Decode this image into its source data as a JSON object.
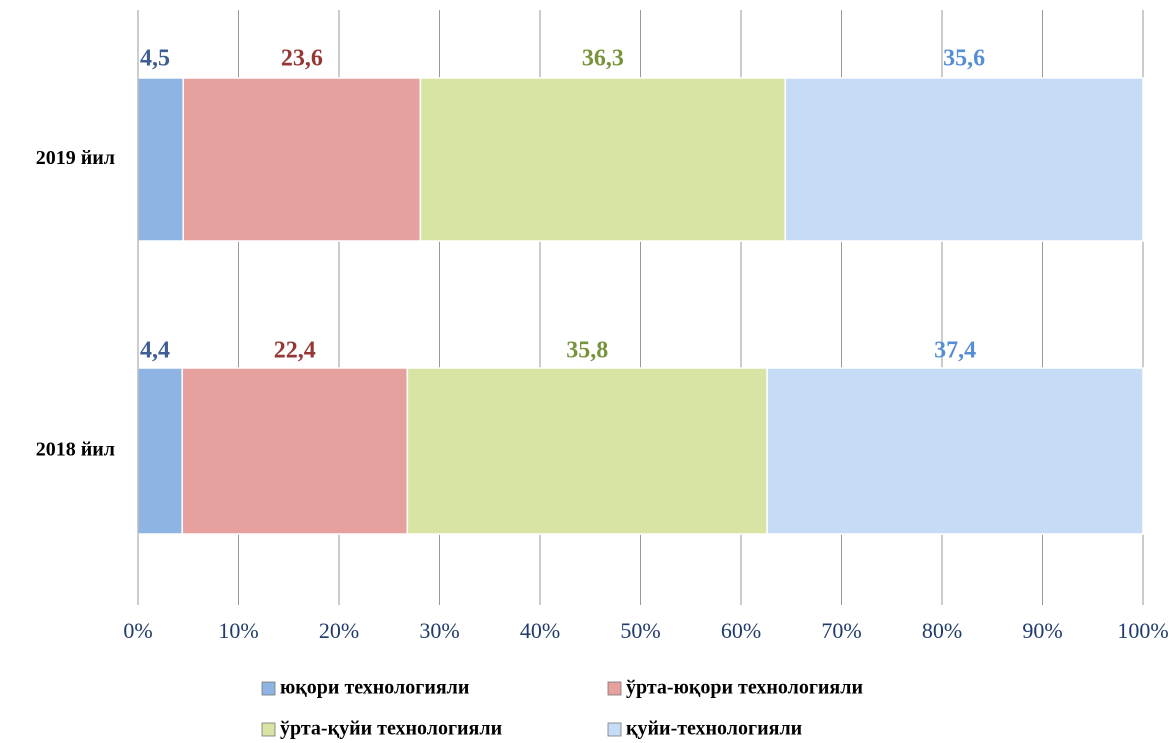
{
  "chart_data": {
    "type": "stacked_bar_horizontal",
    "categories": [
      "2019 йил",
      "2018 йил"
    ],
    "series": [
      {
        "name": "юқори технологияли",
        "color": "#8db4e2",
        "label_color": "#3f5f93",
        "values": [
          4.5,
          4.4
        ],
        "value_labels": [
          "4,5",
          "4,4"
        ]
      },
      {
        "name": "ўрта-юқори технологияли",
        "color": "#e6a09e",
        "label_color": "#953735",
        "values": [
          23.6,
          22.4
        ],
        "value_labels": [
          "23,6",
          "22,4"
        ]
      },
      {
        "name": "ўрта-қуйи технологияли",
        "color": "#d7e4a4",
        "label_color": "#77933c",
        "values": [
          36.3,
          35.8
        ],
        "value_labels": [
          "36,3",
          "35,8"
        ]
      },
      {
        "name": "қуйи-технологияли",
        "color": "#c6dbf5",
        "label_color": "#558ed5",
        "values": [
          35.6,
          37.4
        ],
        "value_labels": [
          "35,6",
          "37,4"
        ]
      }
    ],
    "xlim": [
      0,
      100
    ],
    "xticks": [
      {
        "value": 0,
        "label": "0%"
      },
      {
        "value": 10,
        "label": "10%"
      },
      {
        "value": 20,
        "label": "20%"
      },
      {
        "value": 30,
        "label": "30%"
      },
      {
        "value": 40,
        "label": "40%"
      },
      {
        "value": 50,
        "label": "50%"
      },
      {
        "value": 60,
        "label": "60%"
      },
      {
        "value": 70,
        "label": "70%"
      },
      {
        "value": 80,
        "label": "80%"
      },
      {
        "value": 90,
        "label": "90%"
      },
      {
        "value": 100,
        "label": "100%"
      }
    ],
    "grid": true
  }
}
